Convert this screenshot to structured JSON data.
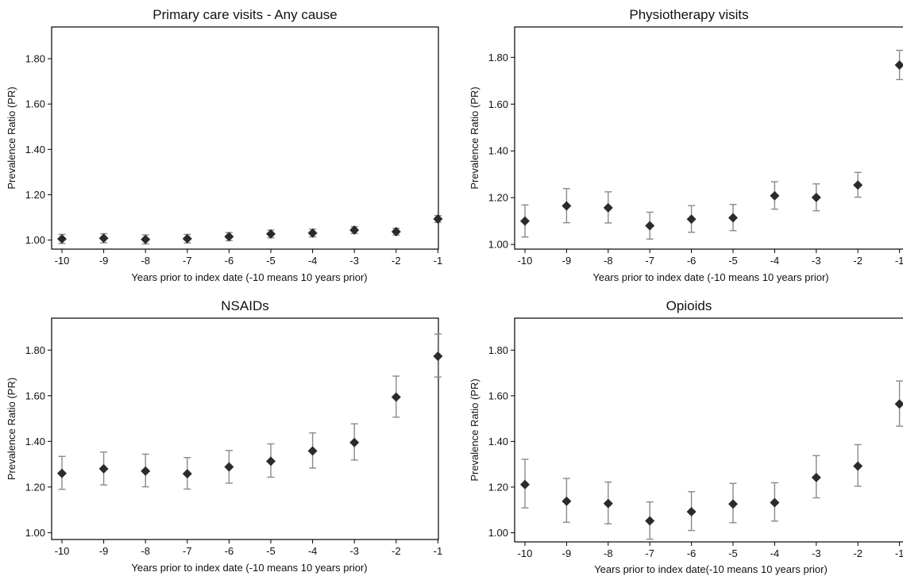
{
  "chart_data": [
    {
      "type": "scatter",
      "title": "Primary care visits - Any cause",
      "xlabel": "Years prior to index date (-10 means 10 years prior)",
      "ylabel": "Prevalence Ratio (PR)",
      "x": [
        -10,
        -9,
        -8,
        -7,
        -6,
        -5,
        -4,
        -3,
        -2,
        -1
      ],
      "xticks": [
        "-10",
        "-9",
        "-8",
        "-7",
        "-6",
        "-5",
        "-4",
        "-3",
        "-2",
        "-1"
      ],
      "yticks": [
        "1.00",
        "1.20",
        "1.40",
        "1.60",
        "1.80"
      ],
      "ylim": [
        0.96,
        1.94
      ],
      "y": [
        1.005,
        1.008,
        1.003,
        1.006,
        1.015,
        1.027,
        1.031,
        1.044,
        1.037,
        1.093
      ],
      "lower": [
        0.985,
        0.988,
        0.983,
        0.987,
        0.997,
        1.01,
        1.014,
        1.029,
        1.022,
        1.078
      ],
      "upper": [
        1.025,
        1.028,
        1.023,
        1.025,
        1.033,
        1.044,
        1.048,
        1.059,
        1.052,
        1.108
      ],
      "grid": false
    },
    {
      "type": "scatter",
      "title": "Physiotherapy visits",
      "xlabel": "Years prior to index date (-10 means 10 years prior)",
      "ylabel": "Prevalence Ratio (PR)",
      "x": [
        -10,
        -9,
        -8,
        -7,
        -6,
        -5,
        -4,
        -3,
        -2,
        -1
      ],
      "xticks": [
        "-10",
        "-9",
        "-8",
        "-7",
        "-6",
        "-5",
        "-4",
        "-3",
        "-2",
        "-1"
      ],
      "yticks": [
        "1.00",
        "1.20",
        "1.40",
        "1.60",
        "1.80"
      ],
      "ylim": [
        0.98,
        1.93
      ],
      "y": [
        1.1,
        1.165,
        1.157,
        1.08,
        1.108,
        1.114,
        1.208,
        1.201,
        1.254,
        1.767
      ],
      "lower": [
        1.032,
        1.093,
        1.092,
        1.023,
        1.052,
        1.059,
        1.151,
        1.144,
        1.202,
        1.705
      ],
      "upper": [
        1.169,
        1.239,
        1.225,
        1.138,
        1.166,
        1.171,
        1.268,
        1.259,
        1.308,
        1.83
      ],
      "grid": false
    },
    {
      "type": "scatter",
      "title": "NSAIDs",
      "xlabel": "Years prior to index date (-10 means 10 years prior)",
      "ylabel": "Prevalence Ratio (PR)",
      "x": [
        -10,
        -9,
        -8,
        -7,
        -6,
        -5,
        -4,
        -3,
        -2,
        -1
      ],
      "xticks": [
        "-10",
        "-9",
        "-8",
        "-7",
        "-6",
        "-5",
        "-4",
        "-3",
        "-2",
        "-1"
      ],
      "yticks": [
        "1.00",
        "1.20",
        "1.40",
        "1.60",
        "1.80"
      ],
      "ylim": [
        0.97,
        1.94
      ],
      "y": [
        1.26,
        1.28,
        1.27,
        1.258,
        1.288,
        1.313,
        1.358,
        1.395,
        1.594,
        1.773
      ],
      "lower": [
        1.19,
        1.209,
        1.201,
        1.191,
        1.217,
        1.243,
        1.283,
        1.318,
        1.506,
        1.682
      ],
      "upper": [
        1.334,
        1.353,
        1.344,
        1.329,
        1.36,
        1.389,
        1.437,
        1.477,
        1.686,
        1.87
      ],
      "grid": false
    },
    {
      "type": "scatter",
      "title": "Opioids",
      "xlabel": "Years prior to index date(-10 means 10 years prior)",
      "ylabel": "Prevalence Ratio (PR)",
      "x": [
        -10,
        -9,
        -8,
        -7,
        -6,
        -5,
        -4,
        -3,
        -2,
        -1
      ],
      "xticks": [
        "-10",
        "-9",
        "-8",
        "-7",
        "-6",
        "-5",
        "-4",
        "-3",
        "-2",
        "-1"
      ],
      "yticks": [
        "1.00",
        "1.20",
        "1.40",
        "1.60",
        "1.80"
      ],
      "ylim": [
        0.96,
        1.94
      ],
      "y": [
        1.211,
        1.138,
        1.128,
        1.052,
        1.092,
        1.126,
        1.132,
        1.242,
        1.292,
        1.564
      ],
      "lower": [
        1.109,
        1.046,
        1.039,
        0.972,
        1.01,
        1.044,
        1.051,
        1.153,
        1.204,
        1.467
      ],
      "upper": [
        1.322,
        1.238,
        1.222,
        1.135,
        1.18,
        1.216,
        1.219,
        1.338,
        1.386,
        1.665
      ],
      "grid": false
    }
  ]
}
